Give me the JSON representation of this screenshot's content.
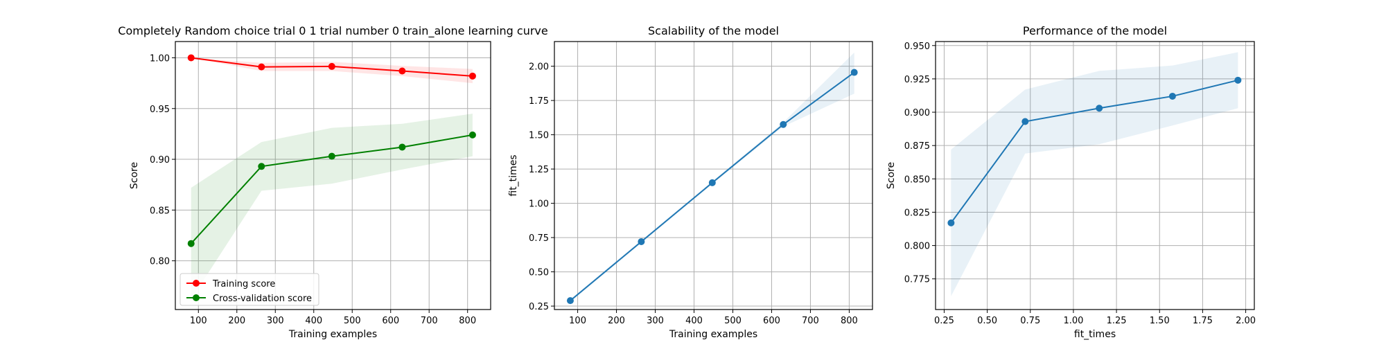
{
  "chart_data": [
    {
      "type": "line",
      "title": "Completely Random choice trial 0 1 trial number 0 train_alone learning curve",
      "xlabel": "Training examples",
      "ylabel": "Score",
      "xlim": [
        40,
        860
      ],
      "ylim": [
        0.752,
        1.016
      ],
      "xticks": [
        100,
        200,
        300,
        400,
        500,
        600,
        700,
        800
      ],
      "xtick_labels": [
        "100",
        "200",
        "300",
        "400",
        "500",
        "600",
        "700",
        "800"
      ],
      "yticks": [
        0.8,
        0.85,
        0.9,
        0.95,
        1.0
      ],
      "ytick_labels": [
        "0.80",
        "0.85",
        "0.90",
        "0.95",
        "1.00"
      ],
      "grid": true,
      "legend_position": "lower-left",
      "x": [
        81,
        264,
        447,
        630,
        813
      ],
      "series": [
        {
          "name": "Training score",
          "color": "#ff0000",
          "values": [
            1.0,
            0.991,
            0.9915,
            0.987,
            0.982
          ],
          "band_low": [
            1.0,
            0.987,
            0.987,
            0.982,
            0.975
          ],
          "band_high": [
            1.0,
            0.995,
            0.996,
            0.992,
            0.989
          ]
        },
        {
          "name": "Cross-validation score",
          "color": "#008000",
          "values": [
            0.817,
            0.893,
            0.903,
            0.912,
            0.924
          ],
          "band_low": [
            0.762,
            0.869,
            0.876,
            0.89,
            0.903
          ],
          "band_high": [
            0.872,
            0.917,
            0.931,
            0.935,
            0.945
          ]
        }
      ]
    },
    {
      "type": "line",
      "title": "Scalability of the model",
      "xlabel": "Training examples",
      "ylabel": "fit_times",
      "xlim": [
        40,
        860
      ],
      "ylim": [
        0.225,
        2.18
      ],
      "xticks": [
        100,
        200,
        300,
        400,
        500,
        600,
        700,
        800
      ],
      "xtick_labels": [
        "100",
        "200",
        "300",
        "400",
        "500",
        "600",
        "700",
        "800"
      ],
      "yticks": [
        0.25,
        0.5,
        0.75,
        1.0,
        1.25,
        1.5,
        1.75,
        2.0
      ],
      "ytick_labels": [
        "0.25",
        "0.50",
        "0.75",
        "1.00",
        "1.25",
        "1.50",
        "1.75",
        "2.00"
      ],
      "grid": true,
      "x": [
        81,
        264,
        447,
        630,
        813
      ],
      "series": [
        {
          "color": "#1f77b4",
          "values": [
            0.29,
            0.72,
            1.15,
            1.575,
            1.955
          ],
          "band_low": [
            0.28,
            0.71,
            1.14,
            1.56,
            1.8
          ],
          "band_high": [
            0.3,
            0.73,
            1.16,
            1.59,
            2.1
          ]
        }
      ]
    },
    {
      "type": "line",
      "title": "Performance of the model",
      "xlabel": "fit_times",
      "ylabel": "Score",
      "xlim": [
        0.2,
        2.05
      ],
      "ylim": [
        0.752,
        0.953
      ],
      "xticks": [
        0.25,
        0.5,
        0.75,
        1.0,
        1.25,
        1.5,
        1.75,
        2.0
      ],
      "xtick_labels": [
        "0.25",
        "0.50",
        "0.75",
        "1.00",
        "1.25",
        "1.50",
        "1.75",
        "2.00"
      ],
      "yticks": [
        0.775,
        0.8,
        0.825,
        0.85,
        0.875,
        0.9,
        0.925,
        0.95
      ],
      "ytick_labels": [
        "0.775",
        "0.800",
        "0.825",
        "0.850",
        "0.875",
        "0.900",
        "0.925",
        "0.950"
      ],
      "grid": true,
      "x": [
        0.29,
        0.72,
        1.15,
        1.575,
        1.955
      ],
      "series": [
        {
          "color": "#1f77b4",
          "values": [
            0.817,
            0.893,
            0.903,
            0.912,
            0.924
          ],
          "band_low": [
            0.762,
            0.869,
            0.876,
            0.89,
            0.903
          ],
          "band_high": [
            0.872,
            0.917,
            0.931,
            0.935,
            0.945
          ]
        }
      ]
    }
  ]
}
